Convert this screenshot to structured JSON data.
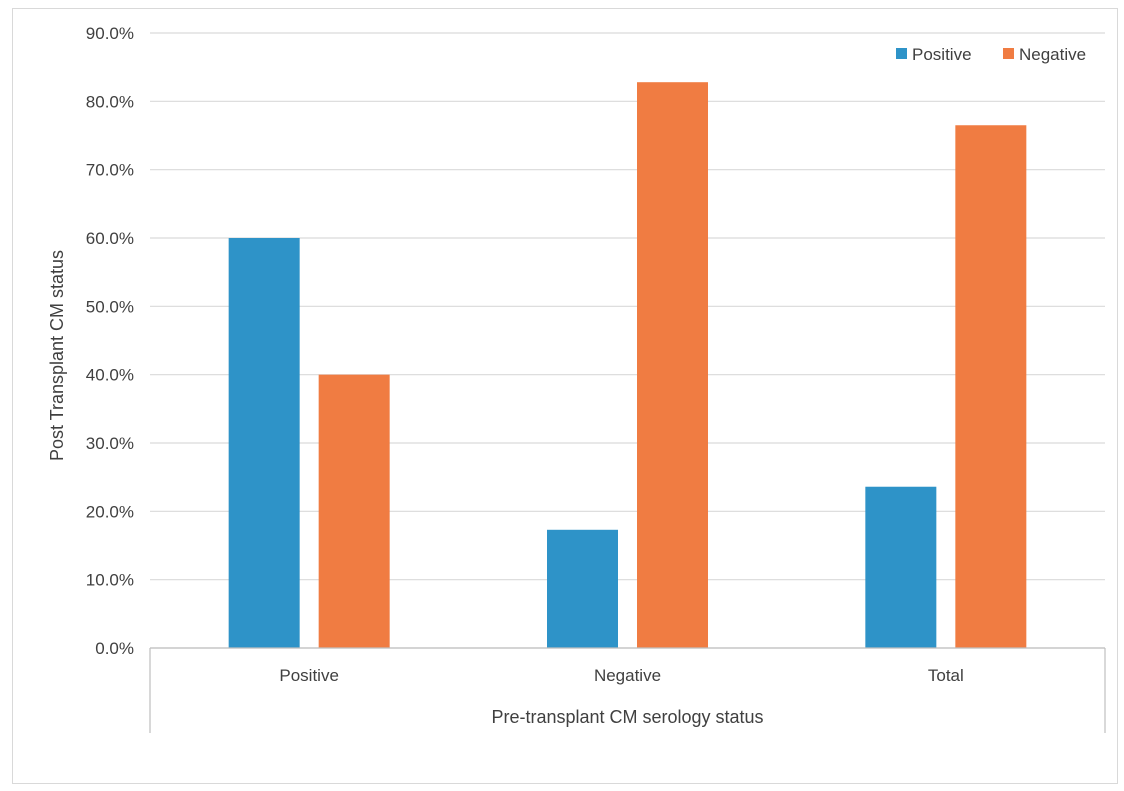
{
  "chart_data": {
    "type": "bar",
    "title": "",
    "xlabel": "Pre-transplant CM serology status",
    "ylabel": "Post Transplant CM status",
    "categories": [
      "Positive",
      "Negative",
      "Total"
    ],
    "series": [
      {
        "name": "Positive",
        "values": [
          60.0,
          17.3,
          23.6
        ],
        "color": "#2e93c8"
      },
      {
        "name": "Negative",
        "values": [
          40.0,
          82.8,
          76.5
        ],
        "color": "#f07c42"
      }
    ],
    "ylim": [
      0,
      90
    ],
    "yticks": [
      "0.0%",
      "10.0%",
      "20.0%",
      "30.0%",
      "40.0%",
      "50.0%",
      "60.0%",
      "70.0%",
      "80.0%",
      "90.0%"
    ],
    "grid": true,
    "legend_position": "top-right"
  }
}
